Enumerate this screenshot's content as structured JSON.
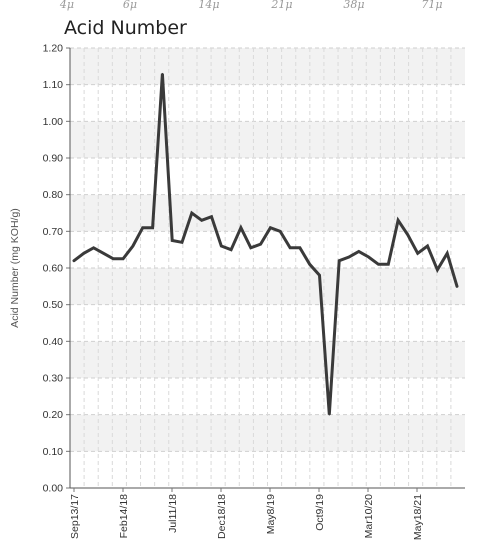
{
  "top_scale": {
    "labels": [
      "4μ",
      "6μ",
      "14μ",
      "21μ",
      "38μ",
      "71μ"
    ]
  },
  "chart_data": {
    "type": "line",
    "title": "Acid Number",
    "xlabel": "",
    "ylabel": "Acid Number (mg KOH/g)",
    "ylim": [
      0,
      1.2
    ],
    "yticks": [
      "0.00",
      "0.10",
      "0.20",
      "0.30",
      "0.40",
      "0.50",
      "0.60",
      "0.70",
      "0.80",
      "0.90",
      "1.00",
      "1.10",
      "1.20"
    ],
    "xtick_labels": [
      "Sep13/17",
      "Feb14/18",
      "Jul11/18",
      "Dec18/18",
      "May8/19",
      "Oct9/19",
      "Mar10/20",
      "May18/21"
    ],
    "grid": true,
    "line_color": "#3a3a3a",
    "series": [
      {
        "values": [
          0.62,
          0.64,
          0.655,
          0.64,
          0.625,
          0.625,
          0.66,
          0.71,
          0.71,
          1.13,
          0.675,
          0.67,
          0.75,
          0.73,
          0.74,
          0.66,
          0.65,
          0.71,
          0.655,
          0.665,
          0.71,
          0.7,
          0.655,
          0.655,
          0.61,
          0.58,
          0.2,
          0.62,
          0.63,
          0.645,
          0.63,
          0.61,
          0.61,
          0.73,
          0.69,
          0.64,
          0.66,
          0.595,
          0.64,
          0.55
        ]
      }
    ]
  }
}
